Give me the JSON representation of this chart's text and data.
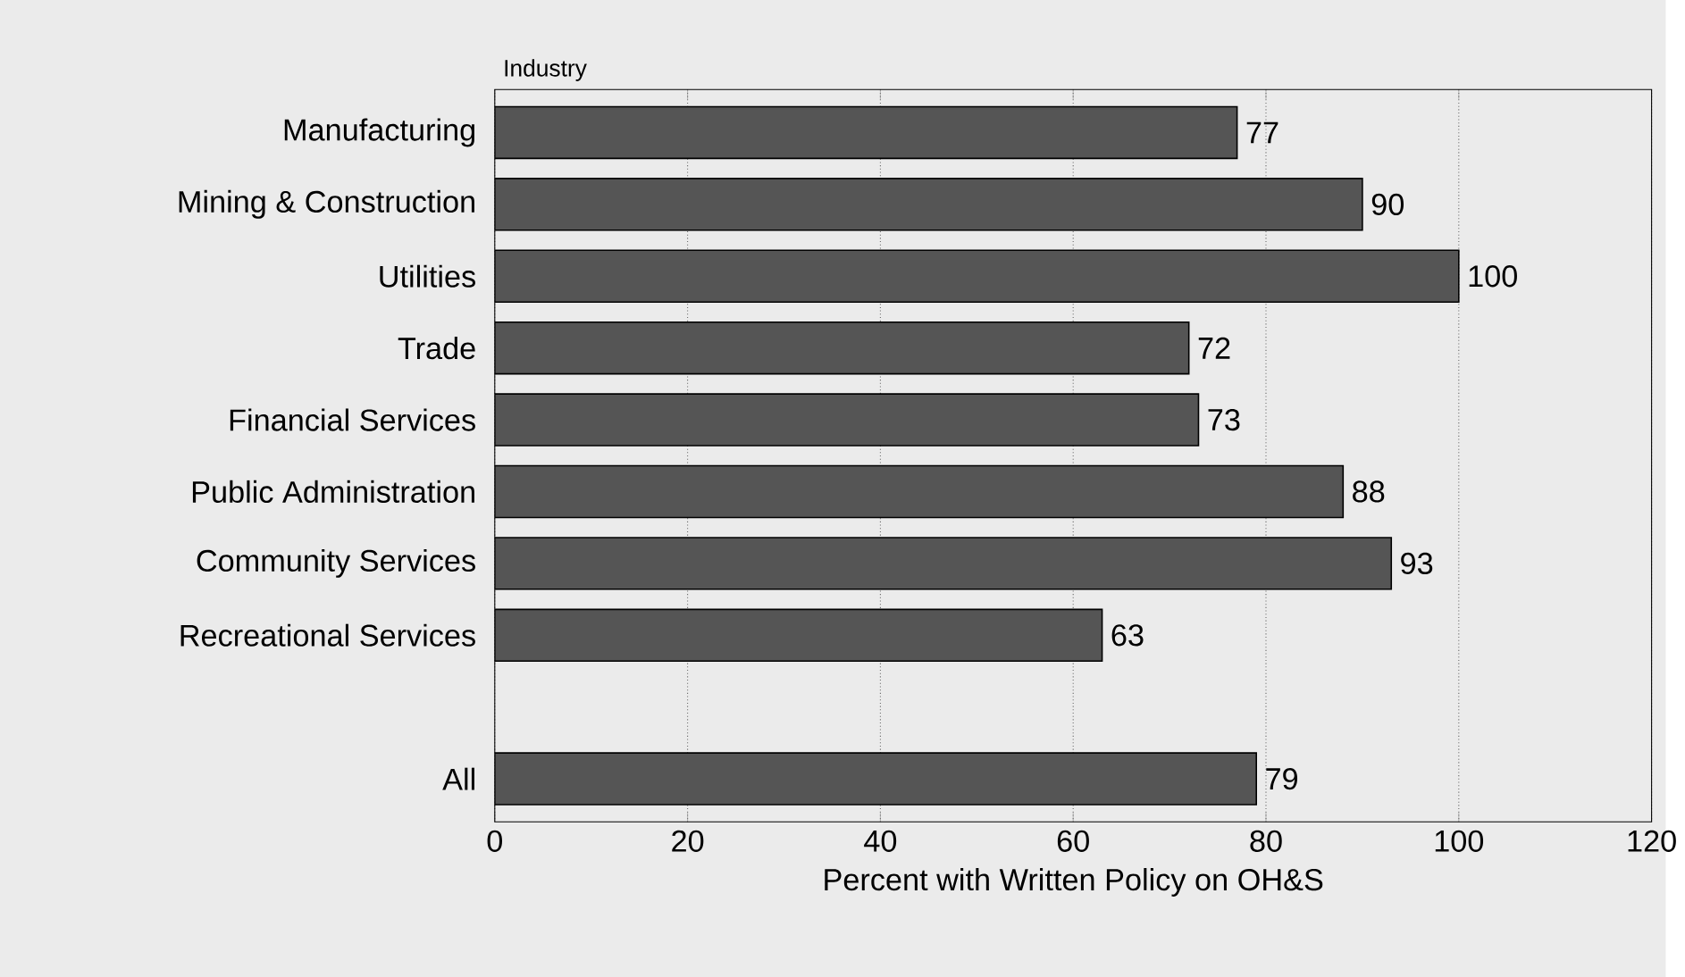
{
  "chart_data": {
    "type": "bar",
    "orientation": "horizontal",
    "ylabel": "Industry",
    "xlabel": "Percent with Written Policy on OH&S",
    "categories": [
      "Manufacturing",
      "Mining & Construction",
      "Utilities",
      "Trade",
      "Financial Services",
      "Public Administration",
      "Community Services",
      "Recreational Services",
      null,
      "All"
    ],
    "values": [
      77,
      90,
      100,
      72,
      73,
      88,
      93,
      63,
      null,
      79
    ],
    "color": "#555555",
    "xlim": [
      0,
      120
    ],
    "xticks": [
      0,
      20,
      40,
      60,
      80,
      100,
      120
    ],
    "grid": "x",
    "data_labels": true
  }
}
